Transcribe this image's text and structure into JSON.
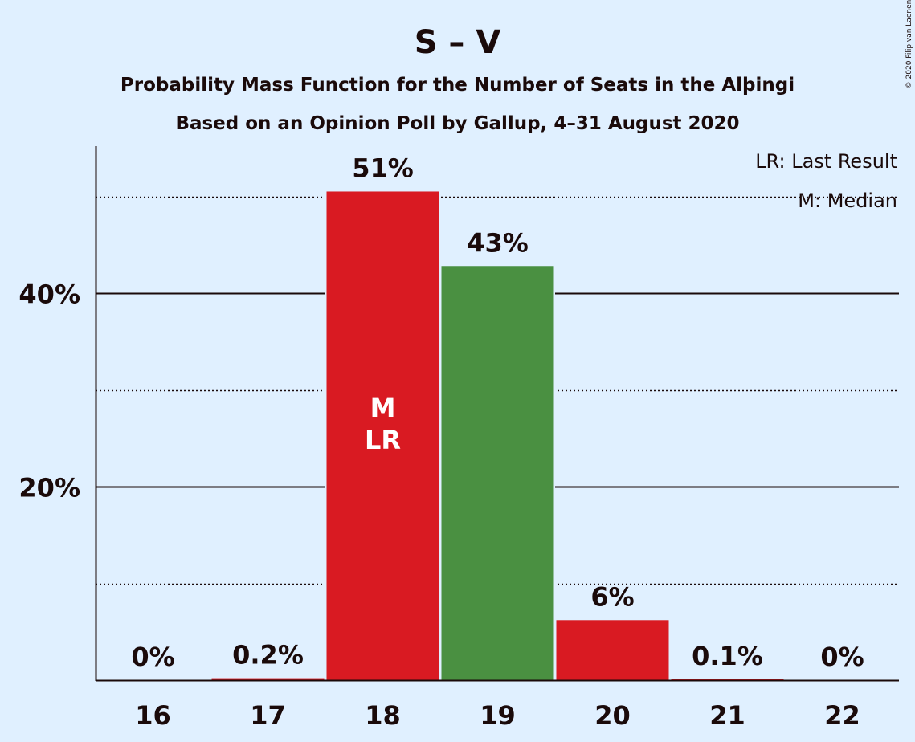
{
  "copyright": "© 2020 Filip van Laenen",
  "chart_data": {
    "type": "bar",
    "title": "S – V",
    "subtitle": "Probability Mass Function for the Number of Seats in the Alþingi",
    "subtitle2": "Based on an Opinion Poll by Gallup, 4–31 August 2020",
    "categories": [
      "16",
      "17",
      "18",
      "19",
      "20",
      "21",
      "22"
    ],
    "values": [
      0,
      0.2,
      50.5,
      42.8,
      6.2,
      0.1,
      0
    ],
    "data_labels": [
      "0%",
      "0.2%",
      "51%",
      "43%",
      "6%",
      "0.1%",
      "0%"
    ],
    "bar_colors": [
      "#d91a22",
      "#d91a22",
      "#d91a22",
      "#4a9041",
      "#d91a22",
      "#d91a22",
      "#d91a22"
    ],
    "in_bar_labels": {
      "18": [
        "M",
        "LR"
      ]
    },
    "ylim": [
      0,
      55
    ],
    "yticks": [
      20,
      40
    ],
    "ytick_labels": [
      "20%",
      "40%"
    ],
    "minor_gridlines": [
      10,
      30,
      50
    ],
    "legend": [
      "LR: Last Result",
      "M: Median"
    ],
    "legend_position": "top-right",
    "colors": {
      "background": "#e0f0ff",
      "red": "#d91a22",
      "green": "#4a9041",
      "text": "#1a0a0a"
    }
  }
}
